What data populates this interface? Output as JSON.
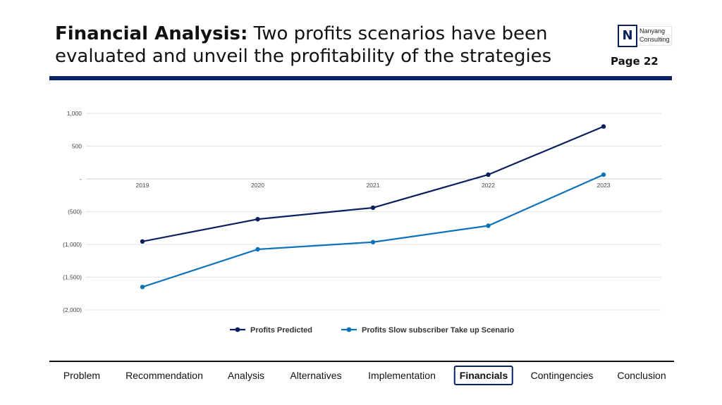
{
  "header": {
    "title_bold": "Financial Analysis:",
    "title_rest": " Two profits scenarios have been evaluated and unveil the profitability of the strategies",
    "page": "Page 22",
    "logo": {
      "letter": "N",
      "line1": "Nanyang",
      "line2": "Consulting"
    }
  },
  "chart_data": {
    "type": "line",
    "categories": [
      "2019",
      "2020",
      "2021",
      "2022",
      "2023"
    ],
    "series": [
      {
        "name": "Profits Predicted",
        "values": [
          -955,
          -615,
          -440,
          65,
          800
        ],
        "color": "#0b1f5c"
      },
      {
        "name": "Profits Slow subscriber Take up Scenario",
        "values": [
          -1650,
          -1075,
          -965,
          -715,
          65
        ],
        "color": "#0e72b8"
      }
    ],
    "yticks": [
      1000,
      500,
      0,
      -500,
      -1000,
      -1500,
      -2000
    ],
    "ytick_labels": [
      "1,000",
      "500",
      "-",
      "(500)",
      "(1,000)",
      "(1,500)",
      "(2,000)"
    ],
    "ylim": [
      -2000,
      1000
    ],
    "grid": true,
    "legend": "bottom"
  },
  "nav": {
    "items": [
      "Problem",
      "Recommendation",
      "Analysis",
      "Alternatives",
      "Implementation",
      "Financials",
      "Contingencies",
      "Conclusion"
    ],
    "active": "Financials"
  }
}
